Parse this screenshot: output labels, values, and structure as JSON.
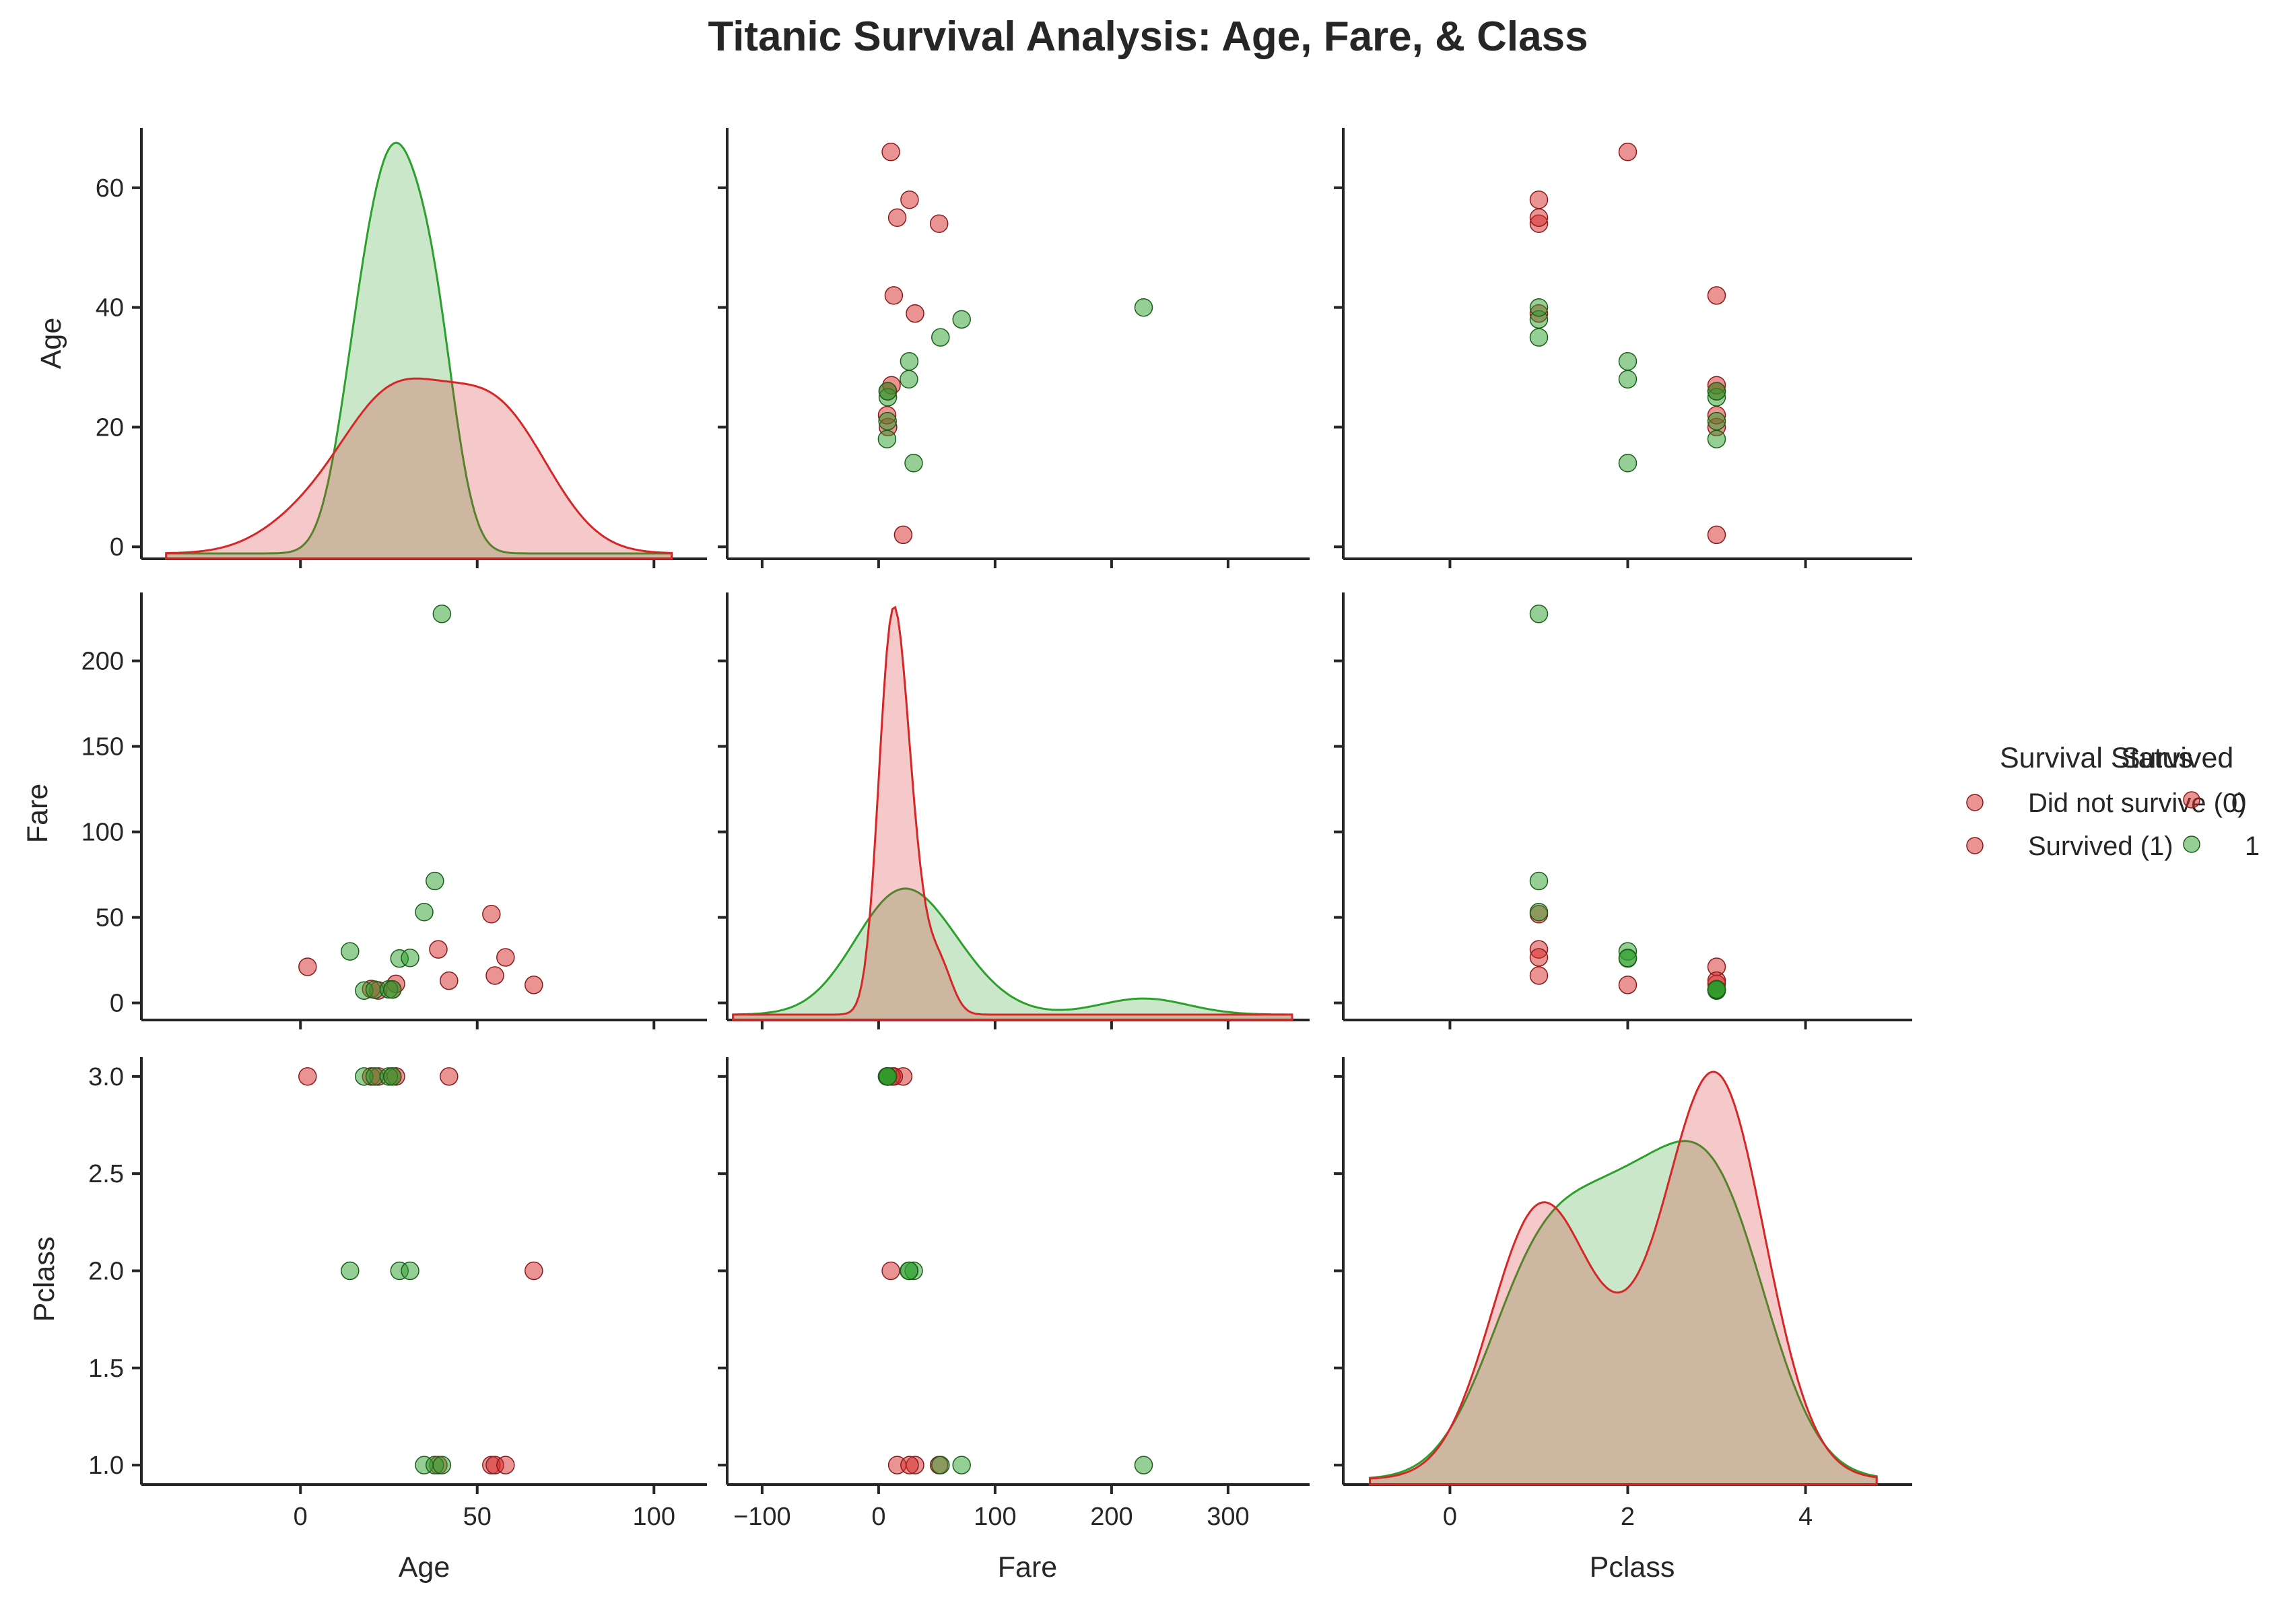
{
  "chart_data": {
    "type": "scatter",
    "title": "Titanic Survival Analysis: Age, Fare, & Class",
    "variables": [
      "Age",
      "Fare",
      "Pclass"
    ],
    "hue": "Survived",
    "diag_kind": "kde",
    "colors": {
      "0": "#d62728",
      "1": "#2ca02c"
    },
    "axes": {
      "Age": {
        "label": "Age",
        "lim": [
          -45,
          115
        ],
        "diag_ticks": [
          0,
          20,
          40,
          60
        ],
        "ticks": [
          0,
          20,
          40,
          60
        ],
        "xticks": [
          0,
          50,
          100
        ],
        "ylim": [
          -2,
          70
        ]
      },
      "Fare": {
        "label": "Fare",
        "lim": [
          -130,
          370
        ],
        "ticks": [
          0,
          50,
          100,
          150,
          200
        ],
        "xticks": [
          -100,
          0,
          100,
          200,
          300
        ],
        "ylim": [
          -10,
          240
        ]
      },
      "Pclass": {
        "label": "Pclass",
        "lim": [
          -1.2,
          5.2
        ],
        "ticks": [
          1.0,
          1.5,
          2.0,
          2.5,
          3.0
        ],
        "xticks": [
          0,
          2,
          4
        ],
        "ylim": [
          0.9,
          3.1
        ]
      }
    },
    "tick_labels": {
      "Age": [
        "0",
        "20",
        "40",
        "60"
      ],
      "Fare": [
        "0",
        "50",
        "100",
        "150",
        "200"
      ],
      "Pclass": [
        "1.0",
        "1.5",
        "2.0",
        "2.5",
        "3.0"
      ],
      "Age_x": [
        "0",
        "50",
        "100"
      ],
      "Fare_x": [
        "−100",
        "0",
        "100",
        "200",
        "300"
      ],
      "Pclass_x": [
        "0",
        "2",
        "4"
      ]
    },
    "points": [
      {
        "age": 2,
        "fare": 21.1,
        "pclass": 3,
        "survived": 0
      },
      {
        "age": 20,
        "fare": 8.1,
        "pclass": 3,
        "survived": 0
      },
      {
        "age": 22,
        "fare": 7.3,
        "pclass": 3,
        "survived": 0
      },
      {
        "age": 26,
        "fare": 7.9,
        "pclass": 3,
        "survived": 0
      },
      {
        "age": 27,
        "fare": 11.1,
        "pclass": 3,
        "survived": 0
      },
      {
        "age": 42,
        "fare": 13,
        "pclass": 3,
        "survived": 0
      },
      {
        "age": 66,
        "fare": 10.5,
        "pclass": 2,
        "survived": 0
      },
      {
        "age": 39,
        "fare": 31.3,
        "pclass": 1,
        "survived": 0
      },
      {
        "age": 54,
        "fare": 51.9,
        "pclass": 1,
        "survived": 0
      },
      {
        "age": 55,
        "fare": 16,
        "pclass": 1,
        "survived": 0
      },
      {
        "age": 58,
        "fare": 26.6,
        "pclass": 1,
        "survived": 0
      },
      {
        "age": 18,
        "fare": 7.2,
        "pclass": 3,
        "survived": 1
      },
      {
        "age": 21,
        "fare": 7.7,
        "pclass": 3,
        "survived": 1
      },
      {
        "age": 25,
        "fare": 7.9,
        "pclass": 3,
        "survived": 1
      },
      {
        "age": 26,
        "fare": 7.8,
        "pclass": 3,
        "survived": 1
      },
      {
        "age": 14,
        "fare": 30.1,
        "pclass": 2,
        "survived": 1
      },
      {
        "age": 28,
        "fare": 26,
        "pclass": 2,
        "survived": 1
      },
      {
        "age": 31,
        "fare": 26.3,
        "pclass": 2,
        "survived": 1
      },
      {
        "age": 35,
        "fare": 53.1,
        "pclass": 1,
        "survived": 1
      },
      {
        "age": 38,
        "fare": 71.3,
        "pclass": 1,
        "survived": 1
      },
      {
        "age": 40,
        "fare": 227.5,
        "pclass": 1,
        "survived": 1
      }
    ],
    "legend": {
      "placement": "right",
      "title_1": "Survival Status",
      "title_2": "Survived",
      "entries_1": [
        "Did not survive (0)",
        "Survived (1)"
      ],
      "entries_2": [
        "0",
        "1"
      ]
    }
  }
}
